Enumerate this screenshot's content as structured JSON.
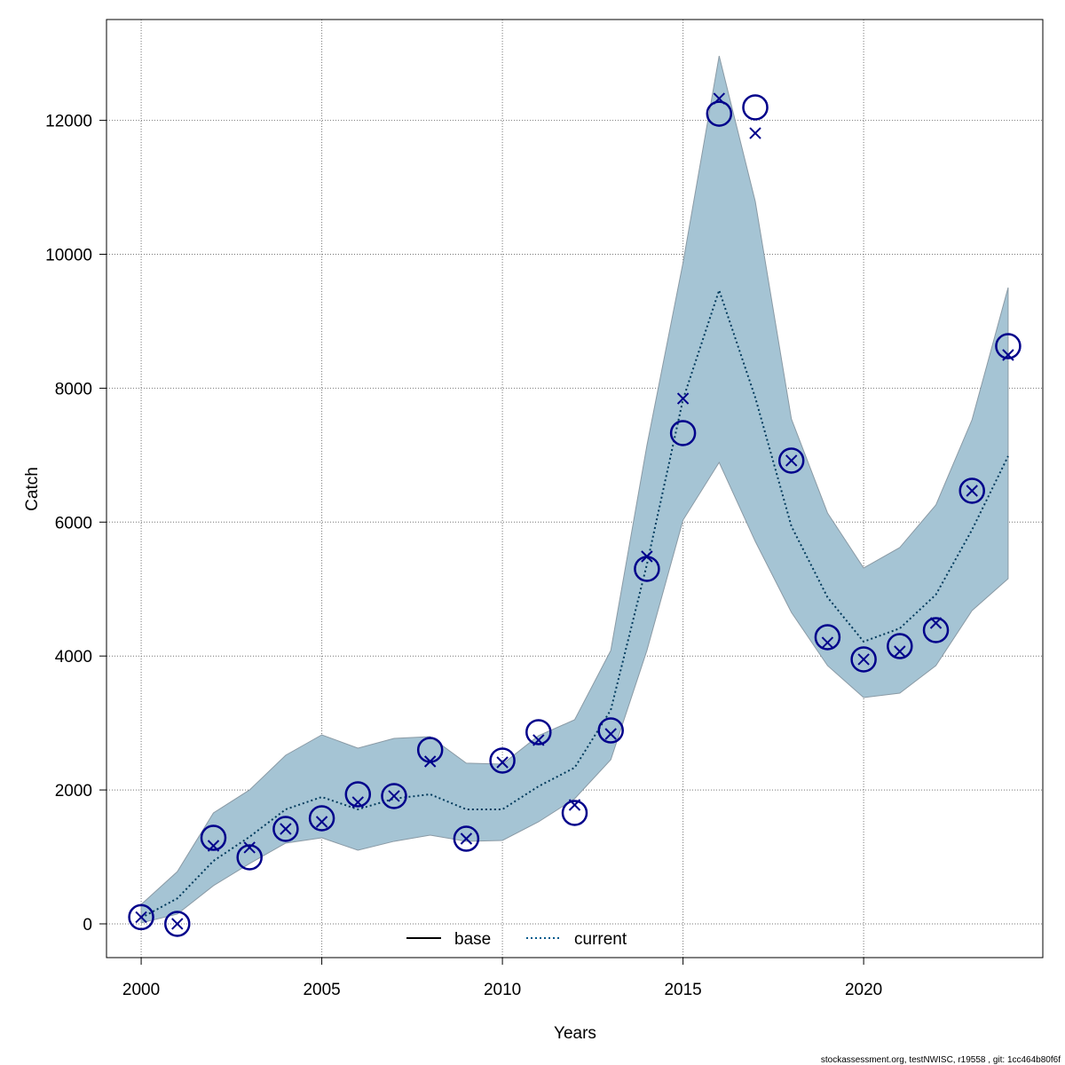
{
  "chart_data": {
    "type": "line",
    "title": "",
    "xlabel": "Years",
    "ylabel": "Catch",
    "xlim": [
      1999.04,
      2024.96
    ],
    "ylim": [
      -504,
      13506
    ],
    "grid": true,
    "x_ticks": [
      2000,
      2005,
      2010,
      2015,
      2020
    ],
    "y_ticks": [
      0,
      2000,
      4000,
      6000,
      8000,
      10000,
      12000
    ],
    "legend": {
      "placement": "bottom",
      "entries": [
        {
          "label": "base",
          "style": "solid",
          "color": "#000000"
        },
        {
          "label": "current",
          "style": "dotted",
          "color": "#005a8c"
        }
      ]
    },
    "x": [
      2000,
      2001,
      2002,
      2003,
      2004,
      2005,
      2006,
      2007,
      2008,
      2009,
      2010,
      2011,
      2012,
      2013,
      2014,
      2015,
      2016,
      2017,
      2018,
      2019,
      2020,
      2021,
      2022,
      2023,
      2024
    ],
    "series": [
      {
        "name": "observed",
        "marker": "circle",
        "color": "#00008b",
        "values": [
          100,
          0,
          1285,
          994,
          1418,
          1577,
          1935,
          1909,
          2598,
          1272,
          2439,
          2863,
          1657,
          2889,
          5302,
          7330,
          12100,
          12194,
          6919,
          4281,
          3950,
          4148,
          4387,
          6468,
          8628
        ]
      },
      {
        "name": "expected",
        "marker": "x",
        "color": "#00008b",
        "values": [
          100,
          0,
          1166,
          1140,
          1418,
          1524,
          1816,
          1909,
          2425,
          1272,
          2412,
          2744,
          1776,
          2836,
          5487,
          7846,
          12326,
          11809,
          6919,
          4201,
          3950,
          4069,
          4493,
          6468,
          8496
        ]
      },
      {
        "name": "current",
        "style": "dotted",
        "color": "#003a5c",
        "values": [
          90,
          380,
          940,
          1300,
          1710,
          1895,
          1710,
          1870,
          1935,
          1710,
          1710,
          2054,
          2333,
          3194,
          5368,
          7833,
          9463,
          7860,
          5938,
          4877,
          4215,
          4413,
          4917,
          5885,
          6985
        ]
      },
      {
        "name": "upper",
        "band": true,
        "values": [
          290,
          780,
          1657,
          2000,
          2518,
          2823,
          2624,
          2770,
          2797,
          2400,
          2386,
          2810,
          3048,
          4082,
          7144,
          9874,
          12962,
          10789,
          7541,
          6137,
          5315,
          5620,
          6256,
          7528,
          9503
        ]
      },
      {
        "name": "lower",
        "band": true,
        "values": [
          15,
          146,
          570,
          900,
          1206,
          1285,
          1100,
          1233,
          1325,
          1233,
          1246,
          1524,
          1869,
          2452,
          4082,
          6030,
          6892,
          5712,
          4652,
          3857,
          3380,
          3446,
          3857,
          4679,
          5156
        ]
      }
    ],
    "band_color": "#a5c4d4",
    "footer": "stockassessment.org, testNWISC, r19558 , git: 1cc464b80f6f"
  }
}
